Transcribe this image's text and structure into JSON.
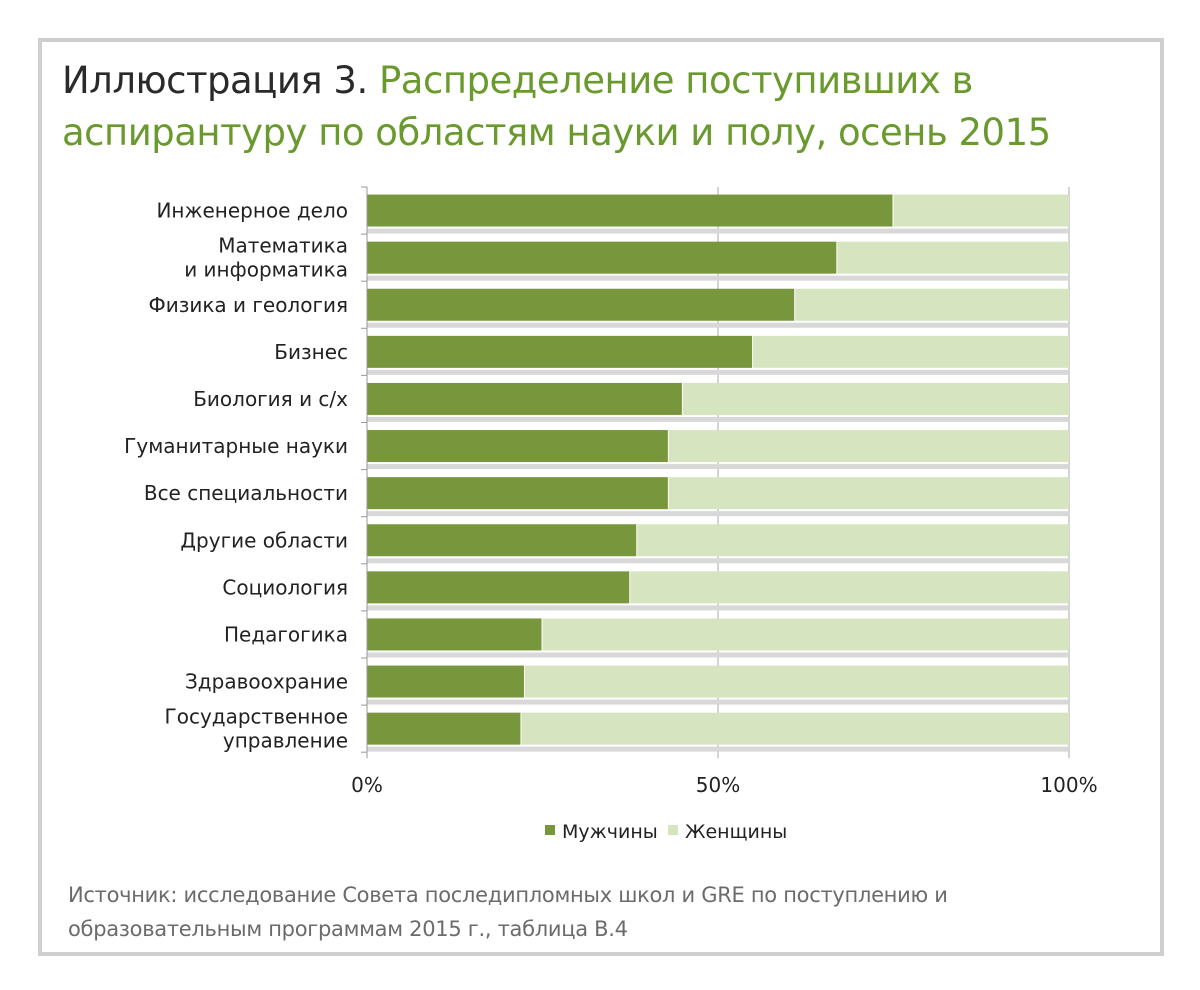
{
  "title": {
    "prefix": "Иллюстрация 3.",
    "line1": "Распределение поступивших в",
    "line2": "аспирантуру по областям науки и полу, осень 2015"
  },
  "source": {
    "line1": "Источник: исследование Совета последипломных школ и GRE по поступлению и",
    "line2": "образовательным программам 2015 г., таблица B.4"
  },
  "colors": {
    "men": "#78963c",
    "women": "#d6e5c0",
    "title": "#6a9a2e"
  },
  "chart_data": {
    "type": "bar",
    "orientation": "horizontal",
    "stacked": "100%",
    "categories": [
      [
        "Инженерное дело"
      ],
      [
        "Математика",
        "и информатика"
      ],
      [
        "Физика и геология"
      ],
      [
        "Бизнес"
      ],
      [
        "Биология и с/х"
      ],
      [
        "Гуманитарные науки"
      ],
      [
        "Все специальности"
      ],
      [
        "Другие области"
      ],
      [
        "Социология"
      ],
      [
        "Педагогика"
      ],
      [
        "Здравоохрание"
      ],
      [
        "Государственное",
        "управление"
      ]
    ],
    "series": [
      {
        "name": "Мужчины",
        "values": [
          75,
          67,
          61,
          55,
          45,
          43,
          43,
          38.5,
          37.5,
          25,
          22.5,
          22
        ]
      },
      {
        "name": "Женщины",
        "values": [
          25,
          33,
          39,
          45,
          55,
          57,
          57,
          61.5,
          62.5,
          75,
          77.5,
          78
        ]
      }
    ],
    "xlim": [
      0,
      100
    ],
    "xticks": [
      "0%",
      "50%",
      "100%"
    ],
    "legend": "bottom",
    "grid": true
  }
}
